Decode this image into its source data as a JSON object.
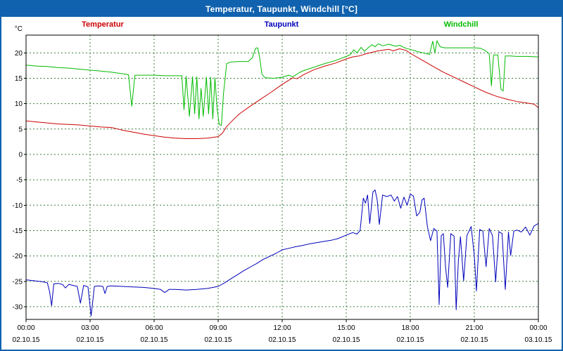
{
  "title": "Temperatur, Taupunkt, Windchill [°C]",
  "chart_data": {
    "type": "line",
    "title": "Temperatur, Taupunkt, Windchill [°C]",
    "xlabel": "",
    "ylabel": "°C",
    "ylim": [
      -32.5,
      23.5
    ],
    "xlim": [
      0,
      24
    ],
    "y_ticks": [
      -30,
      -25,
      -20,
      -15,
      -10,
      -5,
      0,
      5,
      10,
      15,
      20
    ],
    "grid": true,
    "legend_position": "top",
    "x_ticks": [
      {
        "hour": 0,
        "time": "00:00",
        "date": "02.10.15"
      },
      {
        "hour": 3,
        "time": "03:00",
        "date": "02.10.15"
      },
      {
        "hour": 6,
        "time": "06:00",
        "date": "02.10.15"
      },
      {
        "hour": 9,
        "time": "09:00",
        "date": "02.10.15"
      },
      {
        "hour": 12,
        "time": "12:00",
        "date": "02.10.15"
      },
      {
        "hour": 15,
        "time": "15:00",
        "date": "02.10.15"
      },
      {
        "hour": 18,
        "time": "18:00",
        "date": "02.10.15"
      },
      {
        "hour": 21,
        "time": "21:00",
        "date": "02.10.15"
      },
      {
        "hour": 24,
        "time": "00:00",
        "date": "03.10.15"
      }
    ],
    "series": [
      {
        "name": "Temperatur",
        "color": "#cc0000",
        "points": [
          [
            0,
            6.6
          ],
          [
            0.5,
            6.4
          ],
          [
            1,
            6.2
          ],
          [
            1.5,
            6.0
          ],
          [
            2,
            5.9
          ],
          [
            2.5,
            5.8
          ],
          [
            3,
            5.6
          ],
          [
            3.5,
            5.4
          ],
          [
            4,
            5.3
          ],
          [
            4.3,
            5.0
          ],
          [
            4.6,
            4.7
          ],
          [
            5,
            4.4
          ],
          [
            5.5,
            4.0
          ],
          [
            6,
            3.7
          ],
          [
            6.5,
            3.4
          ],
          [
            7,
            3.2
          ],
          [
            7.5,
            3.1
          ],
          [
            8,
            3.1
          ],
          [
            8.5,
            3.2
          ],
          [
            9,
            3.5
          ],
          [
            9.2,
            4.2
          ],
          [
            9.4,
            5.5
          ],
          [
            9.7,
            6.8
          ],
          [
            10,
            8.0
          ],
          [
            10.5,
            9.5
          ],
          [
            11,
            10.9
          ],
          [
            11.5,
            12.3
          ],
          [
            12,
            13.8
          ],
          [
            12.3,
            14.6
          ],
          [
            12.5,
            15.1
          ],
          [
            12.7,
            14.9
          ],
          [
            13,
            15.7
          ],
          [
            13.5,
            16.7
          ],
          [
            14,
            17.4
          ],
          [
            14.5,
            18.0
          ],
          [
            15,
            18.8
          ],
          [
            15.3,
            19.2
          ],
          [
            15.6,
            19.4
          ],
          [
            16,
            19.9
          ],
          [
            16.5,
            20.4
          ],
          [
            17,
            20.7
          ],
          [
            17.2,
            20.4
          ],
          [
            17.5,
            20.8
          ],
          [
            17.8,
            20.5
          ],
          [
            18,
            19.9
          ],
          [
            18.5,
            18.7
          ],
          [
            19,
            17.5
          ],
          [
            19.5,
            16.3
          ],
          [
            20,
            15.3
          ],
          [
            20.5,
            14.3
          ],
          [
            21,
            13.3
          ],
          [
            21.5,
            12.3
          ],
          [
            22,
            11.5
          ],
          [
            22.5,
            10.9
          ],
          [
            23,
            10.4
          ],
          [
            23.5,
            10.1
          ],
          [
            23.8,
            9.9
          ],
          [
            24,
            9.2
          ]
        ]
      },
      {
        "name": "Taupunkt",
        "color": "#0000bb",
        "points": [
          [
            0,
            -24.7
          ],
          [
            0.4,
            -24.9
          ],
          [
            0.8,
            -25.1
          ],
          [
            1,
            -25.3
          ],
          [
            1.1,
            -27.0
          ],
          [
            1.2,
            -29.8
          ],
          [
            1.3,
            -25.5
          ],
          [
            1.5,
            -25.4
          ],
          [
            1.7,
            -25.6
          ],
          [
            1.85,
            -26.3
          ],
          [
            2,
            -25.6
          ],
          [
            2.2,
            -25.8
          ],
          [
            2.4,
            -26.0
          ],
          [
            2.55,
            -29.3
          ],
          [
            2.7,
            -25.8
          ],
          [
            2.9,
            -26.1
          ],
          [
            3.05,
            -31.8
          ],
          [
            3.2,
            -26.0
          ],
          [
            3.4,
            -25.9
          ],
          [
            3.6,
            -26.0
          ],
          [
            3.7,
            -27.4
          ],
          [
            3.8,
            -26.0
          ],
          [
            4,
            -25.9
          ],
          [
            4.5,
            -26.0
          ],
          [
            5,
            -26.1
          ],
          [
            5.5,
            -26.2
          ],
          [
            6,
            -26.4
          ],
          [
            6.3,
            -26.6
          ],
          [
            6.5,
            -27.2
          ],
          [
            6.7,
            -26.6
          ],
          [
            7,
            -26.6
          ],
          [
            7.5,
            -26.7
          ],
          [
            8,
            -26.6
          ],
          [
            8.5,
            -26.4
          ],
          [
            9,
            -26.0
          ],
          [
            9.3,
            -25.3
          ],
          [
            9.6,
            -24.5
          ],
          [
            9.9,
            -23.7
          ],
          [
            10.2,
            -22.9
          ],
          [
            10.5,
            -22.2
          ],
          [
            10.8,
            -21.5
          ],
          [
            11.1,
            -20.7
          ],
          [
            11.4,
            -20.1
          ],
          [
            11.7,
            -19.5
          ],
          [
            12,
            -18.8
          ],
          [
            12.3,
            -18.5
          ],
          [
            12.6,
            -18.2
          ],
          [
            13,
            -17.9
          ],
          [
            13.3,
            -17.6
          ],
          [
            13.6,
            -17.4
          ],
          [
            14,
            -17.1
          ],
          [
            14.3,
            -16.9
          ],
          [
            14.6,
            -16.6
          ],
          [
            15,
            -15.9
          ],
          [
            15.3,
            -15.4
          ],
          [
            15.5,
            -15.7
          ],
          [
            15.65,
            -15.0
          ],
          [
            15.8,
            -8.6
          ],
          [
            15.9,
            -9.6
          ],
          [
            16,
            -8.0
          ],
          [
            16.1,
            -13.6
          ],
          [
            16.25,
            -7.4
          ],
          [
            16.35,
            -7.0
          ],
          [
            16.45,
            -9.0
          ],
          [
            16.55,
            -13.8
          ],
          [
            16.7,
            -8.0
          ],
          [
            16.9,
            -8.3
          ],
          [
            17.1,
            -8.0
          ],
          [
            17.25,
            -9.2
          ],
          [
            17.4,
            -8.3
          ],
          [
            17.55,
            -10.6
          ],
          [
            17.7,
            -8.4
          ],
          [
            17.85,
            -10.0
          ],
          [
            18,
            -7.8
          ],
          [
            18.15,
            -8.2
          ],
          [
            18.3,
            -12.1
          ],
          [
            18.45,
            -11.4
          ],
          [
            18.55,
            -9.0
          ],
          [
            18.65,
            -8.6
          ],
          [
            18.8,
            -14.2
          ],
          [
            18.95,
            -17.0
          ],
          [
            19.1,
            -14.6
          ],
          [
            19.25,
            -15.1
          ],
          [
            19.35,
            -29.6
          ],
          [
            19.45,
            -16.0
          ],
          [
            19.55,
            -15.6
          ],
          [
            19.65,
            -22.0
          ],
          [
            19.75,
            -26.2
          ],
          [
            19.9,
            -15.6
          ],
          [
            20.05,
            -16.1
          ],
          [
            20.15,
            -30.6
          ],
          [
            20.25,
            -21.0
          ],
          [
            20.35,
            -16.2
          ],
          [
            20.5,
            -24.9
          ],
          [
            20.65,
            -16.0
          ],
          [
            20.85,
            -14.2
          ],
          [
            21,
            -20.0
          ],
          [
            21.1,
            -26.9
          ],
          [
            21.25,
            -14.8
          ],
          [
            21.4,
            -15.1
          ],
          [
            21.55,
            -22.1
          ],
          [
            21.7,
            -14.6
          ],
          [
            21.85,
            -16.0
          ],
          [
            22,
            -25.1
          ],
          [
            22.15,
            -15.2
          ],
          [
            22.3,
            -15.6
          ],
          [
            22.45,
            -26.6
          ],
          [
            22.6,
            -15.3
          ],
          [
            22.7,
            -19.9
          ],
          [
            22.85,
            -15.1
          ],
          [
            23,
            -14.9
          ],
          [
            23.2,
            -15.3
          ],
          [
            23.4,
            -14.3
          ],
          [
            23.6,
            -15.9
          ],
          [
            23.8,
            -14.1
          ],
          [
            24,
            -13.6
          ]
        ]
      },
      {
        "name": "Windchill",
        "color": "#00bb00",
        "points": [
          [
            0,
            17.6
          ],
          [
            0.5,
            17.4
          ],
          [
            1,
            17.3
          ],
          [
            1.5,
            17.1
          ],
          [
            2,
            17.0
          ],
          [
            2.5,
            16.8
          ],
          [
            3,
            16.6
          ],
          [
            3.5,
            16.4
          ],
          [
            4,
            16.2
          ],
          [
            4.5,
            15.9
          ],
          [
            4.8,
            15.7
          ],
          [
            4.95,
            9.5
          ],
          [
            5.1,
            15.6
          ],
          [
            5.5,
            15.6
          ],
          [
            6,
            15.6
          ],
          [
            6.5,
            15.5
          ],
          [
            7,
            15.5
          ],
          [
            7.3,
            15.5
          ],
          [
            7.4,
            8.8
          ],
          [
            7.5,
            15.4
          ],
          [
            7.65,
            7.5
          ],
          [
            7.8,
            15.3
          ],
          [
            7.9,
            8.0
          ],
          [
            8,
            15.3
          ],
          [
            8.1,
            7.0
          ],
          [
            8.2,
            13.0
          ],
          [
            8.3,
            7.5
          ],
          [
            8.45,
            15.2
          ],
          [
            8.55,
            8.0
          ],
          [
            8.65,
            15.2
          ],
          [
            8.75,
            7.0
          ],
          [
            8.85,
            15.1
          ],
          [
            8.95,
            9.0
          ],
          [
            9.05,
            5.9
          ],
          [
            9.15,
            5.7
          ],
          [
            9.25,
            12.0
          ],
          [
            9.4,
            17.9
          ],
          [
            9.6,
            18.2
          ],
          [
            10,
            18.3
          ],
          [
            10.4,
            18.3
          ],
          [
            10.6,
            19.0
          ],
          [
            10.75,
            20.9
          ],
          [
            10.85,
            21.0
          ],
          [
            10.95,
            19.0
          ],
          [
            11.05,
            15.8
          ],
          [
            11.2,
            15.1
          ],
          [
            11.6,
            15.0
          ],
          [
            12,
            15.2
          ],
          [
            12.3,
            15.6
          ],
          [
            12.5,
            15.3
          ],
          [
            12.8,
            16.1
          ],
          [
            13,
            16.5
          ],
          [
            13.5,
            17.2
          ],
          [
            14,
            17.9
          ],
          [
            14.5,
            18.5
          ],
          [
            15,
            19.3
          ],
          [
            15.2,
            19.7
          ],
          [
            15.35,
            20.6
          ],
          [
            15.5,
            20.0
          ],
          [
            15.7,
            21.1
          ],
          [
            15.85,
            20.3
          ],
          [
            16,
            20.9
          ],
          [
            16.2,
            21.6
          ],
          [
            16.35,
            21.2
          ],
          [
            16.5,
            21.8
          ],
          [
            16.7,
            21.4
          ],
          [
            17,
            21.7
          ],
          [
            17.3,
            21.3
          ],
          [
            17.5,
            21.5
          ],
          [
            17.8,
            20.9
          ],
          [
            18,
            20.7
          ],
          [
            18.3,
            20.3
          ],
          [
            18.6,
            20.0
          ],
          [
            18.9,
            19.7
          ],
          [
            19.05,
            22.3
          ],
          [
            19.15,
            20.0
          ],
          [
            19.25,
            22.4
          ],
          [
            19.4,
            21.2
          ],
          [
            19.6,
            21.0
          ],
          [
            20,
            21.0
          ],
          [
            20.5,
            21.0
          ],
          [
            21,
            21.0
          ],
          [
            21.3,
            20.9
          ],
          [
            21.5,
            20.5
          ],
          [
            21.7,
            19.8
          ],
          [
            21.8,
            13.5
          ],
          [
            21.9,
            19.6
          ],
          [
            22.1,
            19.6
          ],
          [
            22.25,
            12.8
          ],
          [
            22.35,
            12.5
          ],
          [
            22.45,
            19.4
          ],
          [
            22.7,
            19.4
          ],
          [
            23,
            19.3
          ],
          [
            23.5,
            19.3
          ],
          [
            24,
            19.2
          ]
        ]
      }
    ]
  }
}
